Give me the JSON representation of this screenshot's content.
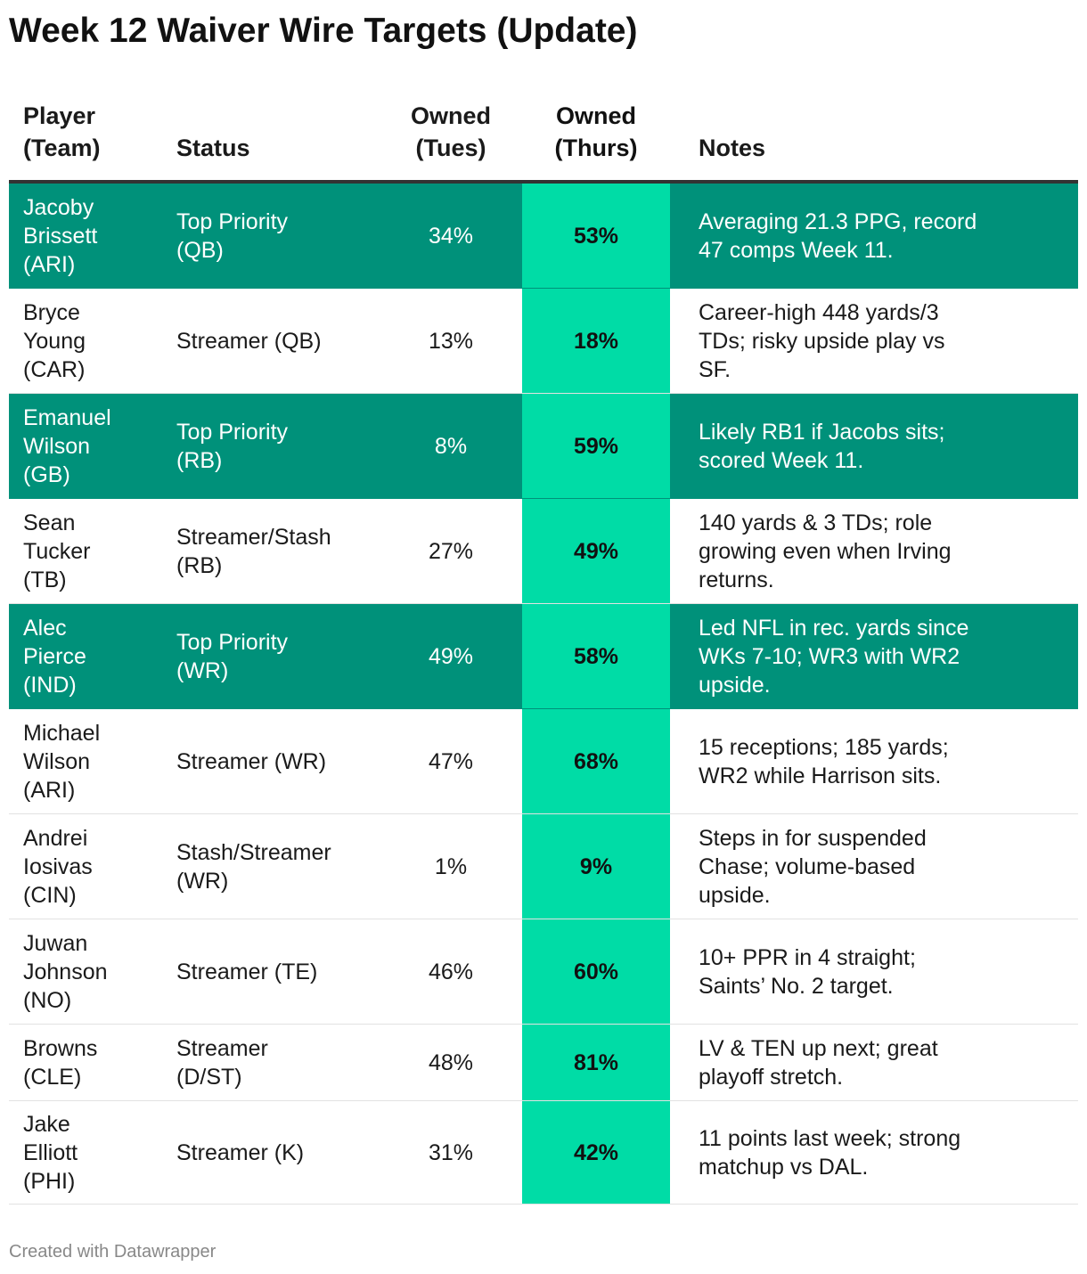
{
  "title": "Week 12 Waiver Wire Targets (Update)",
  "footer": "Created with Datawrapper",
  "colors": {
    "highlight_row": "#00917a",
    "accent_column": "#00dca6",
    "header_rule": "#333333"
  },
  "chart_data": {
    "type": "table",
    "columns": [
      "Player (Team)",
      "Status",
      "Owned (Tues)",
      "Owned (Thurs)",
      "Notes"
    ],
    "header": {
      "player": [
        "Player",
        "(Team)"
      ],
      "status": [
        "Status"
      ],
      "tues": [
        "Owned",
        "(Tues)"
      ],
      "thurs": [
        "Owned",
        "(Thurs)"
      ],
      "notes": [
        "Notes"
      ]
    },
    "rows": [
      {
        "player": [
          "Jacoby",
          "Brissett",
          "(ARI)"
        ],
        "status": [
          "Top Priority",
          "(QB)"
        ],
        "tues": "34%",
        "thurs": "53%",
        "notes": [
          "Averaging 21.3 PPG, record",
          "47 comps Week 11."
        ],
        "highlight": true
      },
      {
        "player": [
          "Bryce",
          "Young",
          "(CAR)"
        ],
        "status": [
          "Streamer (QB)"
        ],
        "tues": "13%",
        "thurs": "18%",
        "notes": [
          "Career-high 448 yards/3",
          "TDs; risky upside play vs",
          "SF."
        ],
        "highlight": false
      },
      {
        "player": [
          "Emanuel",
          "Wilson",
          "(GB)"
        ],
        "status": [
          "Top Priority",
          "(RB)"
        ],
        "tues": "8%",
        "thurs": "59%",
        "notes": [
          "Likely RB1 if Jacobs sits;",
          "scored Week 11."
        ],
        "highlight": true
      },
      {
        "player": [
          "Sean",
          "Tucker",
          "(TB)"
        ],
        "status": [
          "Streamer/Stash",
          "(RB)"
        ],
        "tues": "27%",
        "thurs": "49%",
        "notes": [
          "140 yards & 3 TDs; role",
          "growing even when Irving",
          "returns."
        ],
        "highlight": false
      },
      {
        "player": [
          "Alec",
          "Pierce",
          "(IND)"
        ],
        "status": [
          "Top Priority",
          "(WR)"
        ],
        "tues": "49%",
        "thurs": "58%",
        "notes": [
          "Led NFL in rec. yards since",
          "WKs 7-10; WR3 with WR2",
          "upside."
        ],
        "highlight": true
      },
      {
        "player": [
          "Michael",
          "Wilson",
          "(ARI)"
        ],
        "status": [
          "Streamer (WR)"
        ],
        "tues": "47%",
        "thurs": "68%",
        "notes": [
          "15 receptions; 185 yards;",
          "WR2 while Harrison sits."
        ],
        "highlight": false
      },
      {
        "player": [
          "Andrei",
          "Iosivas",
          "(CIN)"
        ],
        "status": [
          "Stash/Streamer",
          "(WR)"
        ],
        "tues": "1%",
        "thurs": "9%",
        "notes": [
          "Steps in for suspended",
          "Chase; volume-based",
          "upside."
        ],
        "highlight": false
      },
      {
        "player": [
          "Juwan",
          "Johnson",
          "(NO)"
        ],
        "status": [
          "Streamer (TE)"
        ],
        "tues": "46%",
        "thurs": "60%",
        "notes": [
          "10+ PPR in 4 straight;",
          "Saints’ No. 2 target."
        ],
        "highlight": false
      },
      {
        "player": [
          "Browns",
          "(CLE)"
        ],
        "status": [
          "Streamer",
          "(D/ST)"
        ],
        "tues": "48%",
        "thurs": "81%",
        "notes": [
          "LV & TEN up next; great",
          "playoff stretch."
        ],
        "highlight": false
      },
      {
        "player": [
          "Jake",
          "Elliott",
          "(PHI)"
        ],
        "status": [
          "Streamer (K)"
        ],
        "tues": "31%",
        "thurs": "42%",
        "notes": [
          "11 points last week; strong",
          "matchup vs DAL."
        ],
        "highlight": false
      }
    ]
  }
}
